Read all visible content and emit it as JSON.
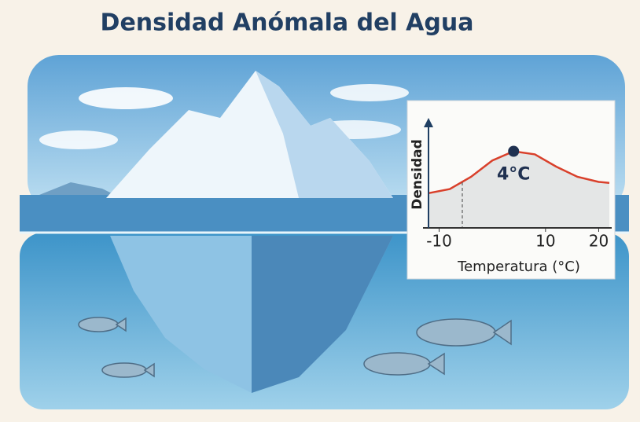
{
  "title": "Densidad Anómala del Agua",
  "chart_data": {
    "type": "line",
    "y_label": "Densidad",
    "x_label": "Temperatura (°C)",
    "x": [
      -12,
      -8,
      -4,
      0,
      4,
      8,
      12,
      16,
      20,
      22
    ],
    "values": [
      3.4,
      3.8,
      5.0,
      6.6,
      7.5,
      7.2,
      6.0,
      5.0,
      4.5,
      4.4
    ],
    "color": "#d9402b",
    "xlim": [
      -12,
      22
    ],
    "ylim": [
      0,
      10
    ],
    "xticks": [
      -10,
      10,
      20
    ],
    "annotation": {
      "x": 4,
      "label": "4°C"
    }
  }
}
